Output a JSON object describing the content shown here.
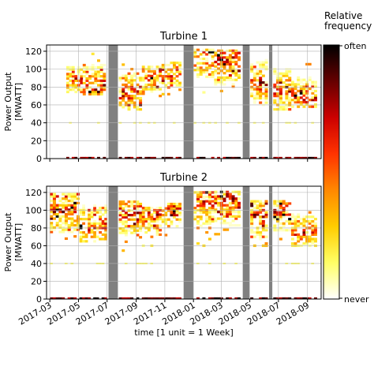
{
  "chart_data": [
    {
      "type": "heatmap",
      "title": "Turbine 1",
      "ylabel": "Power Output\n[MWATT]",
      "xlabel": "",
      "ylim": [
        0,
        127
      ],
      "y_ticks": [
        0,
        20,
        40,
        60,
        80,
        100,
        120
      ],
      "x_tick_labels": [],
      "grid": true,
      "grey_bands": [
        [
          "2017-07-04",
          "2017-07-24"
        ],
        [
          "2017-12-11",
          "2018-01-01"
        ],
        [
          "2018-04-16",
          "2018-04-30"
        ],
        [
          "2018-06-11",
          "2018-06-18"
        ]
      ],
      "weekly_clusters": [
        {
          "from": "2017-04-05",
          "to": "2017-05-10",
          "low": 72,
          "high": 103,
          "peak": 88
        },
        {
          "from": "2017-05-10",
          "to": "2017-06-28",
          "low": 72,
          "high": 118,
          "peak": 82
        },
        {
          "from": "2017-07-26",
          "to": "2017-09-13",
          "low": 55,
          "high": 107,
          "peak": 72
        },
        {
          "from": "2017-09-13",
          "to": "2017-10-25",
          "low": 70,
          "high": 103,
          "peak": 90
        },
        {
          "from": "2017-10-25",
          "to": "2017-12-06",
          "low": 72,
          "high": 108,
          "peak": 97
        },
        {
          "from": "2018-01-01",
          "to": "2018-02-14",
          "low": 74,
          "high": 122,
          "peak": 113
        },
        {
          "from": "2018-02-14",
          "to": "2018-04-11",
          "low": 58,
          "high": 122,
          "peak": 113
        },
        {
          "from": "2018-05-02",
          "to": "2018-06-08",
          "low": 60,
          "high": 112,
          "peak": 85
        },
        {
          "from": "2018-06-20",
          "to": "2018-07-28",
          "low": 55,
          "high": 108,
          "peak": 75
        },
        {
          "from": "2018-07-28",
          "to": "2018-09-21",
          "low": 58,
          "high": 112,
          "peak": 66
        }
      ],
      "zero_output_bar": 0.5
    },
    {
      "type": "heatmap",
      "title": "Turbine 2",
      "ylabel": "Power Output\n[MWATT]",
      "xlabel": "time [1 unit = 1 Week]",
      "ylim": [
        0,
        127
      ],
      "y_ticks": [
        0,
        20,
        40,
        60,
        80,
        100,
        120
      ],
      "x_tick_labels": [
        "2017-03",
        "2017-05",
        "2017-07",
        "2017-09",
        "2017-11",
        "2018-01",
        "2018-03",
        "2018-05",
        "2018-07",
        "2018-09"
      ],
      "grid": true,
      "grey_bands": [
        [
          "2017-07-04",
          "2017-07-24"
        ],
        [
          "2017-12-11",
          "2018-01-01"
        ],
        [
          "2018-04-16",
          "2018-04-30"
        ],
        [
          "2018-06-11",
          "2018-06-18"
        ]
      ],
      "weekly_clusters": [
        {
          "from": "2017-03-01",
          "to": "2017-05-03",
          "low": 68,
          "high": 118,
          "peak": 98
        },
        {
          "from": "2017-05-03",
          "to": "2017-07-01",
          "low": 65,
          "high": 112,
          "peak": 82
        },
        {
          "from": "2017-07-26",
          "to": "2017-09-13",
          "low": 52,
          "high": 110,
          "peak": 97
        },
        {
          "from": "2017-09-13",
          "to": "2017-10-25",
          "low": 55,
          "high": 103,
          "peak": 95
        },
        {
          "from": "2017-10-25",
          "to": "2017-12-06",
          "low": 72,
          "high": 108,
          "peak": 98
        },
        {
          "from": "2018-01-01",
          "to": "2018-02-14",
          "low": 55,
          "high": 122,
          "peak": 113
        },
        {
          "from": "2018-02-14",
          "to": "2018-04-11",
          "low": 58,
          "high": 122,
          "peak": 114
        },
        {
          "from": "2018-05-02",
          "to": "2018-06-08",
          "low": 55,
          "high": 112,
          "peak": 95
        },
        {
          "from": "2018-06-20",
          "to": "2018-07-28",
          "low": 60,
          "high": 110,
          "peak": 100
        },
        {
          "from": "2018-07-28",
          "to": "2018-09-21",
          "low": 60,
          "high": 102,
          "peak": 75
        }
      ],
      "zero_output_bar": 0.5
    }
  ],
  "colorbar": {
    "label": "Relative\nfrequency",
    "top_label": "often",
    "bottom_label": "never",
    "colormap": "afmhot_r",
    "colors": [
      "#ffffff",
      "#ffff66",
      "#ffcc00",
      "#ff8800",
      "#ff3300",
      "#cc0000",
      "#660000",
      "#000000"
    ]
  },
  "colors": {
    "grey_band": "#808080",
    "grid": "#b0b0b0",
    "frame": "#000000"
  }
}
